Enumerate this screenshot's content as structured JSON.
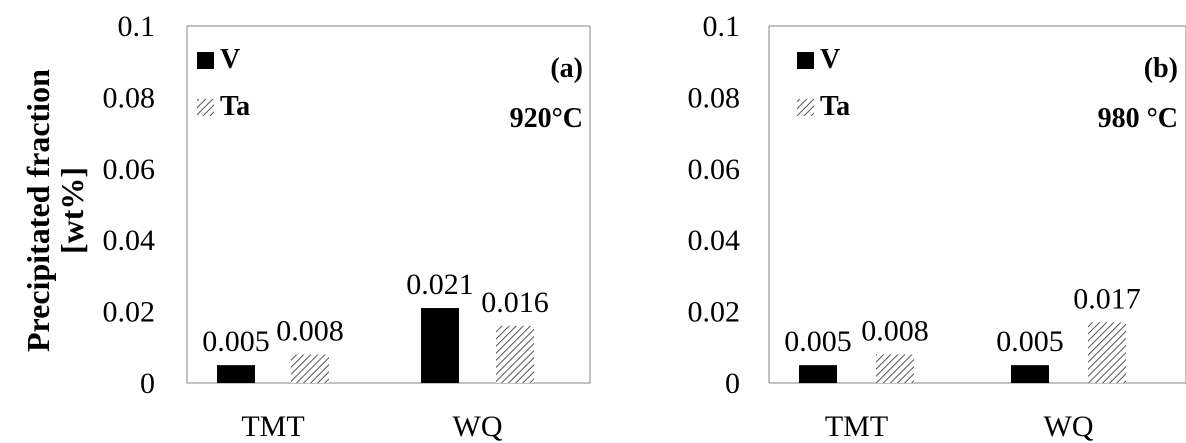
{
  "chart_data": [
    {
      "type": "bar",
      "panel": "(a)",
      "annotation": "920°C",
      "ylabel": [
        "Precipitated fraction",
        "[wt%]"
      ],
      "ylim": [
        0,
        0.1
      ],
      "yticks": [
        "0",
        "0.02",
        "0.04",
        "0.06",
        "0.08",
        "0.1"
      ],
      "categories": [
        "TMT",
        "WQ"
      ],
      "series": [
        {
          "name": "V",
          "values": [
            0.005,
            0.021
          ],
          "labels": [
            "0.005",
            "0.021"
          ],
          "fill": "solid"
        },
        {
          "name": "Ta",
          "values": [
            0.008,
            0.016
          ],
          "labels": [
            "0.008",
            "0.016"
          ],
          "fill": "hatched"
        }
      ],
      "legend": "top-left",
      "grid": false
    },
    {
      "type": "bar",
      "panel": "(b)",
      "annotation": "980 °C",
      "ylim": [
        0,
        0.1
      ],
      "yticks": [
        "0",
        "0.02",
        "0.04",
        "0.06",
        "0.08",
        "0.1"
      ],
      "categories": [
        "TMT",
        "WQ"
      ],
      "series": [
        {
          "name": "V",
          "values": [
            0.005,
            0.005
          ],
          "labels": [
            "0.005",
            "0.005"
          ],
          "fill": "solid"
        },
        {
          "name": "Ta",
          "values": [
            0.008,
            0.017
          ],
          "labels": [
            "0.008",
            "0.017"
          ],
          "fill": "hatched"
        }
      ],
      "legend": "top-left",
      "grid": false
    }
  ],
  "colors": {
    "bar_solid": "#000000",
    "axis": "#868686",
    "hatch": "#555555"
  }
}
